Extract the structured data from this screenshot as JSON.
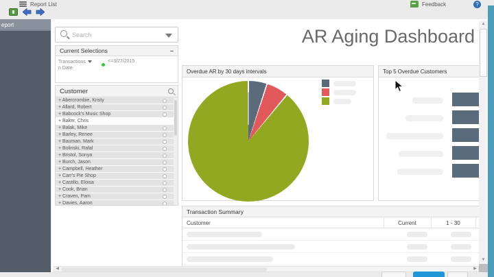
{
  "toolbar": {
    "report_list_label": "Report List",
    "feedback_label": "Feedback",
    "help_label": "?"
  },
  "sidebar": {
    "header_label": "eport"
  },
  "search": {
    "placeholder": "Search"
  },
  "current_selections": {
    "title": "Current Selections",
    "minimize_label": "–",
    "field_line1": "Transactions",
    "field_line2": "n Date",
    "value": "<=3/27/2015"
  },
  "customer_panel": {
    "title": "Customer",
    "row_prefix": "+",
    "highlighted_item": "Baker, Chris",
    "items": [
      "Abercrombie, Kristy",
      "Allard, Robert",
      "Babcock's Music Shop",
      "Baker, Chris",
      "Balak, Mike",
      "Barley, Renee",
      "Bauman, Mark",
      "Bolinski, Rafal",
      "Bristol, Sonya",
      "Burch, Jason",
      "Campbell, Heather",
      "Carr's Pie Shop",
      "Castillo, Eloisa",
      "Cook, Brian",
      "Craven, Pam",
      "Davies, Aaron"
    ]
  },
  "main": {
    "title": "AR Aging Dashboard",
    "transaction_summary": {
      "title": "Transaction Summary",
      "columns": [
        "Customer",
        "Current",
        "1 - 30"
      ]
    }
  },
  "chart_data": [
    {
      "type": "pie",
      "title": "Overdue AR by 30 days intervals",
      "direction": "clockwise",
      "start_angle_deg": 0,
      "legend_position": "right",
      "slices": [
        {
          "label": "",
          "percent": 5,
          "color": "#5b6b7b"
        },
        {
          "label": "",
          "percent": 6,
          "color": "#e2595c"
        },
        {
          "label": "",
          "percent": 89,
          "color": "#93a821"
        }
      ],
      "note": "legend labels are blurred placeholder bars; no text visible"
    },
    {
      "type": "bar",
      "title": "Top 5 Overdue Customers",
      "orientation": "horizontal",
      "bar_count": 5,
      "bar_color": "#5a6b7c",
      "note": "category labels blurred; bar values cut off at screen edge"
    }
  ],
  "colors": {
    "accent_teal": "#4d9cb9",
    "sidebar": "#525d68",
    "sidebar_header": "#8a929e",
    "pie_green": "#93a821",
    "pie_red": "#e2595c",
    "pie_gray": "#5b6b7b",
    "primary_button_blue": "#2196d6",
    "nav_arrow_blue": "#3e6ec6",
    "icon_green": "#579a43"
  }
}
